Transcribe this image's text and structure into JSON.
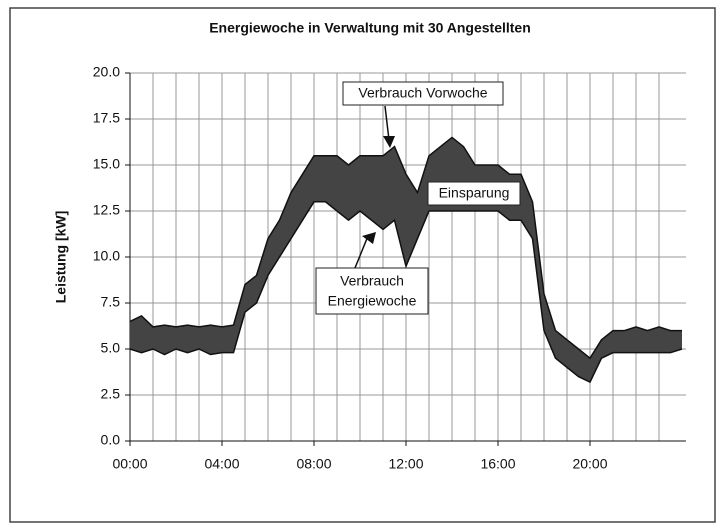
{
  "chart_data": {
    "type": "line",
    "title": "Energiewoche in Verwaltung mit 30 Angestellten",
    "ylabel": "Leistung [kW]",
    "x": [
      0,
      0.5,
      1,
      1.5,
      2,
      2.5,
      3,
      3.5,
      4,
      4.5,
      5,
      5.5,
      6,
      6.5,
      7,
      7.5,
      8,
      8.5,
      9,
      9.5,
      10,
      10.5,
      11,
      11.5,
      12,
      12.5,
      13,
      13.5,
      14,
      14.5,
      15,
      15.5,
      16,
      16.5,
      17,
      17.5,
      18,
      18.5,
      19,
      19.5,
      20,
      20.5,
      21,
      21.5,
      22,
      22.5,
      23,
      23.5,
      24
    ],
    "series": [
      {
        "name": "Verbrauch Vorwoche",
        "color": "#111111",
        "values": [
          6.5,
          6.8,
          6.2,
          6.3,
          6.2,
          6.3,
          6.2,
          6.3,
          6.2,
          6.3,
          8.5,
          9,
          11,
          12,
          13.5,
          14.5,
          15.5,
          15.5,
          15.5,
          15,
          15.5,
          15.5,
          15.5,
          16,
          14.5,
          13.5,
          15.5,
          16,
          16.5,
          16,
          15,
          15,
          15,
          14.5,
          14.5,
          13,
          8,
          6,
          5.5,
          5,
          4.5,
          5.5,
          6,
          6,
          6.2,
          6,
          6.2,
          6,
          6
        ]
      },
      {
        "name": "Verbrauch Energiewoche",
        "color": "#111111",
        "values": [
          5,
          4.8,
          5,
          4.7,
          5,
          4.8,
          5,
          4.7,
          4.8,
          4.8,
          7,
          7.5,
          9,
          10,
          11,
          12,
          13,
          13,
          12.5,
          12,
          12.5,
          12,
          11.5,
          12,
          9.5,
          11,
          12.5,
          12.5,
          12.5,
          12.5,
          12.5,
          12.5,
          12.5,
          12,
          12,
          11,
          6,
          4.5,
          4,
          3.5,
          3.2,
          4.5,
          4.8,
          4.8,
          4.8,
          4.8,
          4.8,
          4.8,
          5
        ]
      }
    ],
    "fill_between": {
      "color": "#444444"
    },
    "annotations": [
      "Verbrauch Vorwoche",
      "Einsparung",
      "Verbrauch",
      "Energiewoche"
    ],
    "xlim": [
      0,
      24
    ],
    "xticks": [
      {
        "value": 0,
        "label": "00:00"
      },
      {
        "value": 4,
        "label": "04:00"
      },
      {
        "value": 8,
        "label": "08:00"
      },
      {
        "value": 12,
        "label": "12:00"
      },
      {
        "value": 16,
        "label": "16:00"
      },
      {
        "value": 20,
        "label": "20:00"
      }
    ],
    "xgrid": [
      1,
      2,
      3,
      5,
      6,
      7,
      9,
      10,
      11,
      13,
      14,
      15,
      17,
      18,
      19,
      21,
      22,
      23
    ],
    "ylim": [
      0,
      20
    ],
    "yticks": [
      {
        "value": 0,
        "label": "0.0"
      },
      {
        "value": 2.5,
        "label": "2.5"
      },
      {
        "value": 5,
        "label": "5.0"
      },
      {
        "value": 7.5,
        "label": "7.5"
      },
      {
        "value": 10,
        "label": "10.0"
      },
      {
        "value": 12.5,
        "label": "12.5"
      },
      {
        "value": 15,
        "label": "15.0"
      },
      {
        "value": 17.5,
        "label": "17.5"
      },
      {
        "value": 20,
        "label": "20.0"
      }
    ],
    "grid": true
  }
}
